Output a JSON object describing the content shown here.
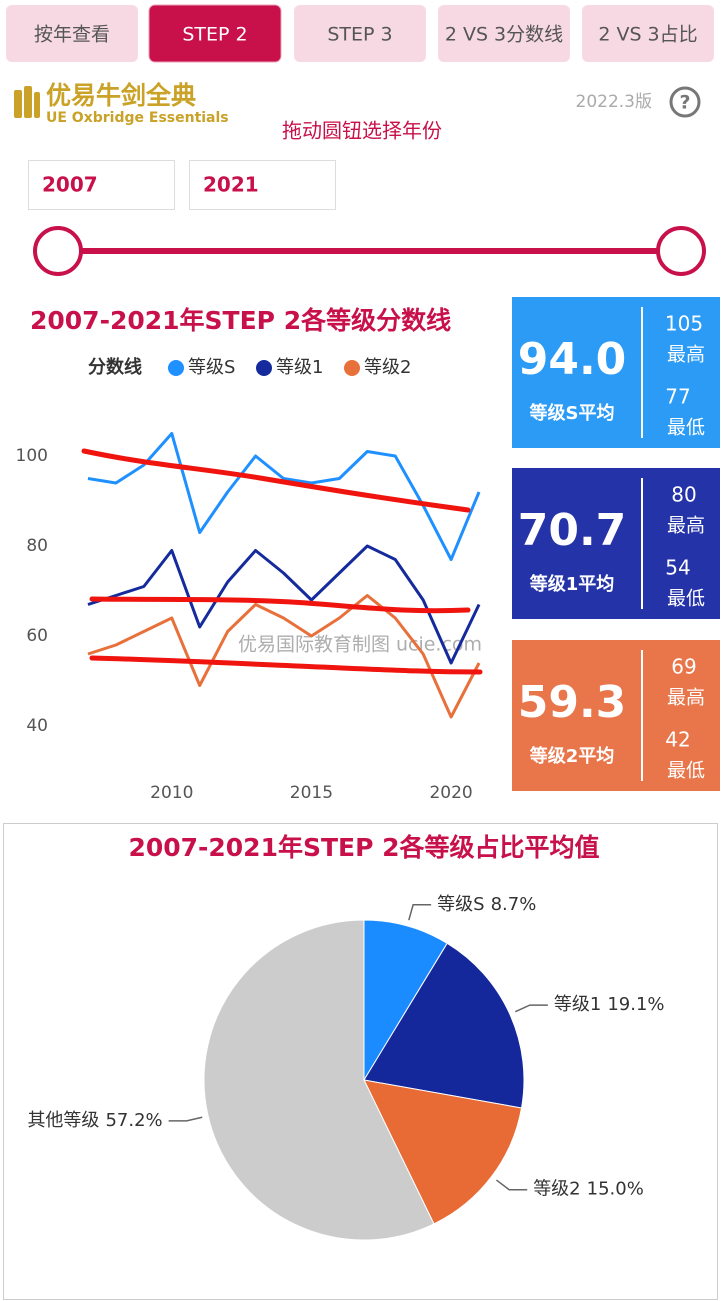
{
  "tabs": [
    "按年查看",
    "STEP 2",
    "STEP 3",
    "2 VS 3分数线",
    "2 VS 3占比"
  ],
  "active_tab": 1,
  "logo": {
    "title": "优易牛剑全典",
    "subtitle": "UE Oxbridge Essentials"
  },
  "version": "2022.3版",
  "help": "?",
  "slider": {
    "hint": "拖动圆钮选择年份",
    "start": "2007",
    "end": "2021"
  },
  "watermark": "优易国际教育制图 ucie.com",
  "chart_data": [
    {
      "type": "line",
      "title": "2007-2021年STEP 2各等级分数线",
      "legend_title": "分数线",
      "x": [
        2007,
        2008,
        2009,
        2010,
        2011,
        2012,
        2013,
        2014,
        2015,
        2016,
        2017,
        2018,
        2019,
        2020,
        2021
      ],
      "series": [
        {
          "name": "等级S",
          "color": "#1e90ff",
          "values": [
            95,
            94,
            98,
            105,
            83,
            92,
            100,
            95,
            94,
            95,
            101,
            100,
            89,
            77,
            92
          ]
        },
        {
          "name": "等级1",
          "color": "#152a9c",
          "values": [
            67,
            69,
            71,
            79,
            62,
            72,
            79,
            74,
            68,
            74,
            80,
            77,
            68,
            54,
            67
          ]
        },
        {
          "name": "等级2",
          "color": "#e8703a",
          "values": [
            56,
            58,
            61,
            64,
            49,
            61,
            67,
            64,
            60,
            64,
            69,
            64,
            56,
            42,
            54
          ]
        }
      ],
      "xlim": [
        2006.5,
        2021.5
      ],
      "xticks": [
        2010,
        2015,
        2020
      ],
      "ylim": [
        30,
        110
      ],
      "yticks": [
        40,
        60,
        80,
        100
      ]
    },
    {
      "type": "pie",
      "title": "2007-2021年STEP 2各等级占比平均值",
      "categories": [
        "等级S",
        "等级1",
        "等级2",
        "其他等级"
      ],
      "values": [
        8.7,
        19.1,
        15.0,
        57.2
      ],
      "value_labels": [
        "8.7%",
        "19.1%",
        "15.0%",
        "57.2%"
      ],
      "colors": [
        "#1a8cff",
        "#14279b",
        "#e86a35",
        "#cccccc"
      ]
    }
  ],
  "stats": [
    {
      "avg": "94.0",
      "avg_label": "等级S平均",
      "max": "105",
      "max_label": "最高",
      "min": "77",
      "min_label": "最低",
      "color": "#2b9bf5"
    },
    {
      "avg": "70.7",
      "avg_label": "等级1平均",
      "max": "80",
      "max_label": "最高",
      "min": "54",
      "min_label": "最低",
      "color": "#2533a8"
    },
    {
      "avg": "59.3",
      "avg_label": "等级2平均",
      "max": "69",
      "max_label": "最高",
      "min": "42",
      "min_label": "最低",
      "color": "#e8764a"
    }
  ]
}
